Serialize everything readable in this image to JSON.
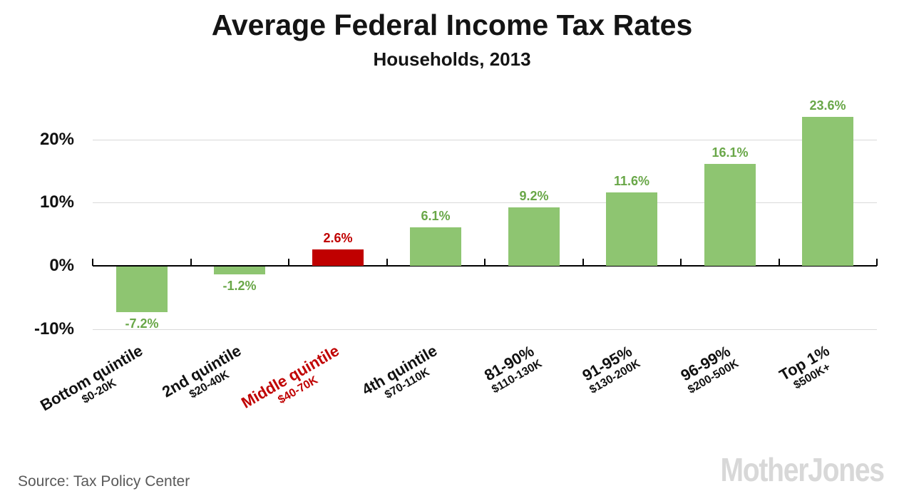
{
  "chart_data": {
    "type": "bar",
    "title": "Average Federal Income Tax Rates",
    "subtitle": "Households, 2013",
    "categories": [
      "Bottom quintile",
      "2nd quintile",
      "Middle quintile",
      "4th quintile",
      "81-90%",
      "91-95%",
      "96-99%",
      "Top 1%"
    ],
    "sublabels": [
      "$0-20K",
      "$20-40K",
      "$40-70K",
      "$70-110K",
      "$110-130K",
      "$130-200K",
      "$200-500K",
      "$500K+"
    ],
    "values": [
      -7.2,
      -1.2,
      2.6,
      6.1,
      9.2,
      11.6,
      16.1,
      23.6
    ],
    "value_labels": [
      "-7.2%",
      "-1.2%",
      "2.6%",
      "6.1%",
      "9.2%",
      "11.6%",
      "16.1%",
      "23.6%"
    ],
    "highlight_index": 2,
    "y_ticks": [
      {
        "label": "20%",
        "value": 20
      },
      {
        "label": "10%",
        "value": 10
      },
      {
        "label": "0%",
        "value": 0
      },
      {
        "label": "-10%",
        "value": -10
      }
    ],
    "ylim": [
      -10.5,
      26
    ],
    "grid": "horizontal",
    "legend": "none",
    "colors": {
      "bar": "#8ec571",
      "bar_label": "#69a748",
      "highlight": "#c00000",
      "grid_line": "#d9d9d9",
      "axis_line": "#000000",
      "tick_label": "#111111"
    }
  },
  "footer": {
    "source": "Source: Tax Policy Center",
    "logo": "MotherJones"
  }
}
